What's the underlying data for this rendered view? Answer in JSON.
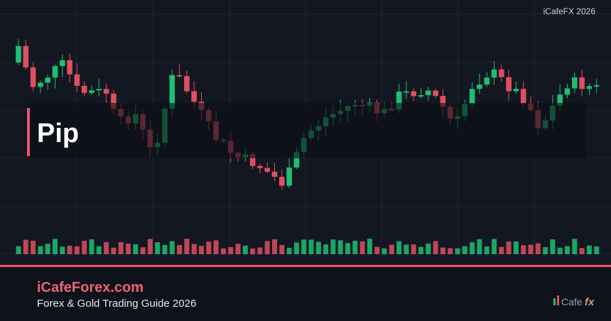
{
  "watermark": "iCafeFX 2026",
  "title": "Pip",
  "footer": {
    "site": "iCafeForex.com",
    "tagline": "Forex & Gold Trading Guide 2026",
    "logo": {
      "text": "Cafe",
      "fx": "fx"
    }
  }
}
